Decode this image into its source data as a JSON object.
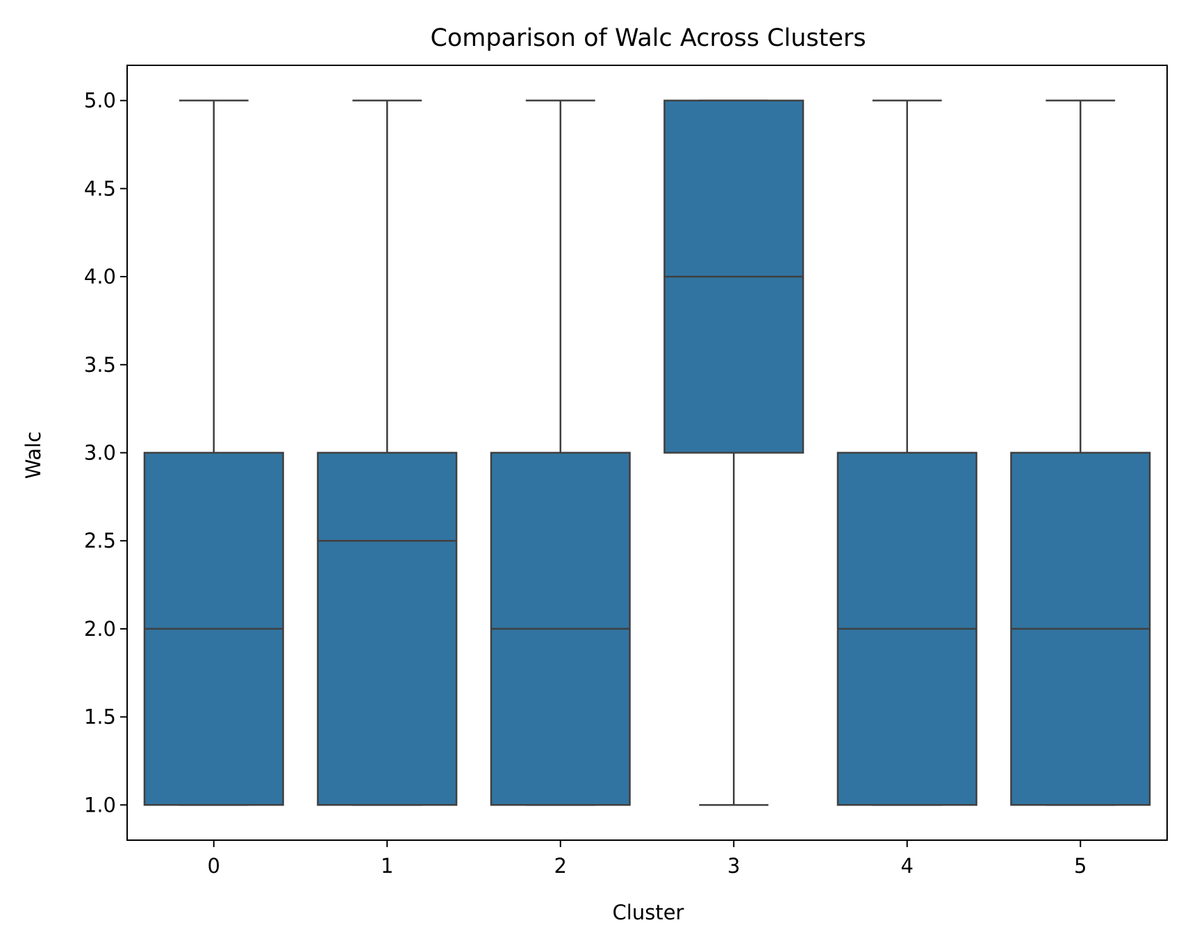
{
  "chart_data": {
    "type": "box",
    "title": "Comparison of Walc Across Clusters",
    "xlabel": "Cluster",
    "ylabel": "Walc",
    "ylim": [
      0.8,
      5.2
    ],
    "yticks": [
      "1.0",
      "1.5",
      "2.0",
      "2.5",
      "3.0",
      "3.5",
      "4.0",
      "4.5",
      "5.0"
    ],
    "ytick_values": [
      1.0,
      1.5,
      2.0,
      2.5,
      3.0,
      3.5,
      4.0,
      4.5,
      5.0
    ],
    "categories": [
      "0",
      "1",
      "2",
      "3",
      "4",
      "5"
    ],
    "boxes": [
      {
        "category": "0",
        "whisker_low": 1.0,
        "q1": 1.0,
        "median": 2.0,
        "q3": 3.0,
        "whisker_high": 5.0
      },
      {
        "category": "1",
        "whisker_low": 1.0,
        "q1": 1.0,
        "median": 2.5,
        "q3": 3.0,
        "whisker_high": 5.0
      },
      {
        "category": "2",
        "whisker_low": 1.0,
        "q1": 1.0,
        "median": 2.0,
        "q3": 3.0,
        "whisker_high": 5.0
      },
      {
        "category": "3",
        "whisker_low": 1.0,
        "q1": 3.0,
        "median": 4.0,
        "q3": 5.0,
        "whisker_high": 5.0
      },
      {
        "category": "4",
        "whisker_low": 1.0,
        "q1": 1.0,
        "median": 2.0,
        "q3": 3.0,
        "whisker_high": 5.0
      },
      {
        "category": "5",
        "whisker_low": 1.0,
        "q1": 1.0,
        "median": 2.0,
        "q3": 3.0,
        "whisker_high": 5.0
      }
    ],
    "box_color": "#3274a1",
    "line_color": "#3f3f3f",
    "grid": false,
    "legend": "none"
  }
}
